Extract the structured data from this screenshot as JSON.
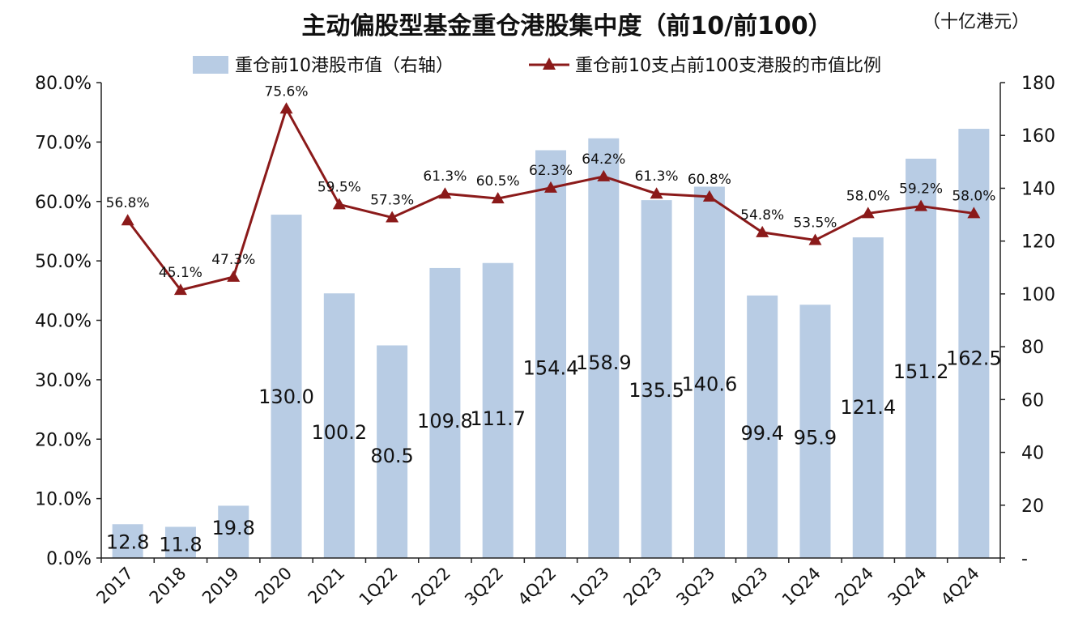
{
  "chart_data": {
    "type": "bar+line",
    "title": "主动偏股型基金重仓港股集中度（前10/前100）",
    "unit_label": "（十亿港元）",
    "categories": [
      "2017",
      "2018",
      "2019",
      "2020",
      "2021",
      "1Q22",
      "2Q22",
      "3Q22",
      "4Q22",
      "1Q23",
      "2Q23",
      "3Q23",
      "4Q23",
      "1Q24",
      "2Q24",
      "3Q24",
      "4Q24"
    ],
    "series": [
      {
        "name": "重仓前10港股市值（右轴）",
        "type": "bar",
        "axis": "right",
        "color": "#b8cce4",
        "values": [
          12.8,
          11.8,
          19.8,
          130.0,
          100.2,
          80.5,
          109.8,
          111.7,
          154.4,
          158.9,
          135.5,
          140.6,
          99.4,
          95.9,
          121.4,
          151.2,
          162.5
        ],
        "labels": [
          "12.8",
          "11.8",
          "19.8",
          "130.0",
          "100.2",
          "80.5",
          "109.8",
          "111.7",
          "154.4",
          "158.9",
          "135.5",
          "140.6",
          "99.4",
          "95.9",
          "121.4",
          "151.2",
          "162.5"
        ]
      },
      {
        "name": "重仓前10支占前100支港股的市值比例",
        "type": "line",
        "axis": "left",
        "color": "#8b1a1a",
        "marker": "triangle",
        "values": [
          56.8,
          45.1,
          47.3,
          75.6,
          59.5,
          57.3,
          61.3,
          60.5,
          62.3,
          64.2,
          61.3,
          60.8,
          54.8,
          53.5,
          58.0,
          59.2,
          58.0
        ],
        "labels": [
          "56.8%",
          "45.1%",
          "47.3%",
          "75.6%",
          "59.5%",
          "57.3%",
          "61.3%",
          "60.5%",
          "62.3%",
          "64.2%",
          "61.3%",
          "60.8%",
          "54.8%",
          "53.5%",
          "58.0%",
          "59.2%",
          "58.0%"
        ]
      }
    ],
    "left_axis": {
      "ylim": [
        0,
        80
      ],
      "ticks": [
        0,
        10,
        20,
        30,
        40,
        50,
        60,
        70,
        80
      ],
      "tick_labels": [
        "0.0%",
        "10.0%",
        "20.0%",
        "30.0%",
        "40.0%",
        "50.0%",
        "60.0%",
        "70.0%",
        "80.0%"
      ]
    },
    "right_axis": {
      "ylim": [
        0,
        180
      ],
      "ticks": [
        0,
        20,
        40,
        60,
        80,
        100,
        120,
        140,
        160,
        180
      ],
      "tick_labels": [
        "-",
        "20",
        "40",
        "60",
        "80",
        "100",
        "120",
        "140",
        "160",
        "180"
      ]
    },
    "grid": false,
    "legend_position": "top"
  }
}
